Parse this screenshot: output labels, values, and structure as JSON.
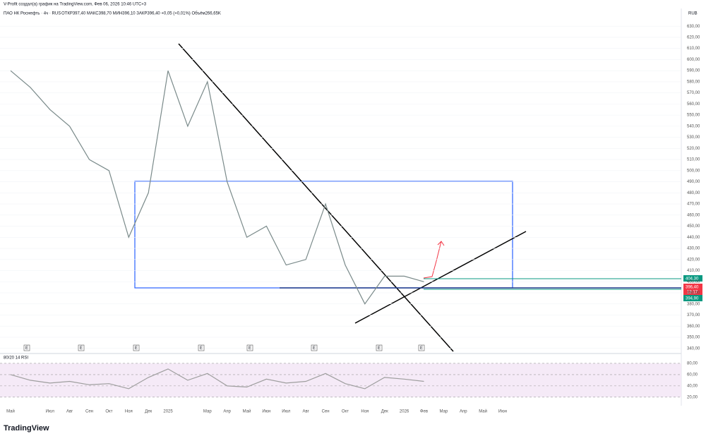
{
  "header": {
    "attribution": "V-Profit создал(а) график на TradingView.com, Фев 06, 2026 10:46 UTC+3"
  },
  "footer": {
    "logo": "TradingView"
  },
  "chart_data": [
    {
      "type": "line",
      "title": "ПАО НК Роснефть · 4ч · RUS",
      "ohlc_legend": "ОТКР397,40 МАКС398,70 МИН396,10 ЗАКР396,40 +0,05 (+0,01%) Объём266,65K",
      "ylabel": "RUB",
      "categories": [
        "Май",
        null,
        "Июл",
        "Авг",
        "Сен",
        "Окт",
        "Ноя",
        "Дек",
        "2025",
        null,
        "Мар",
        "Апр",
        "Май",
        "Июн",
        "Июл",
        "Авг",
        "Сен",
        "Окт",
        "Ноя",
        "Дек",
        "2026",
        "Фев",
        "Мар",
        "Апр",
        "Май",
        "Июн"
      ],
      "values": [
        590,
        575,
        555,
        540,
        510,
        500,
        440,
        480,
        590,
        540,
        580,
        490,
        440,
        450,
        415,
        420,
        470,
        415,
        380,
        405,
        405,
        400,
        null,
        null,
        null,
        null
      ],
      "color": "#7a8a8a",
      "ylim": [
        336,
        646
      ],
      "yticks": [
        {
          "value": 340,
          "label": "340,00"
        },
        {
          "value": 350,
          "label": "350,00"
        },
        {
          "value": 360,
          "label": "360,00"
        },
        {
          "value": 370,
          "label": "370,00"
        },
        {
          "value": 380,
          "label": "380,00"
        },
        {
          "value": 390,
          "label": "390,00"
        },
        {
          "value": 400,
          "label": "400,00"
        },
        {
          "value": 410,
          "label": "410,00"
        },
        {
          "value": 420,
          "label": "420,00"
        },
        {
          "value": 430,
          "label": "430,00"
        },
        {
          "value": 440,
          "label": "440,00"
        },
        {
          "value": 450,
          "label": "450,00"
        },
        {
          "value": 460,
          "label": "460,00"
        },
        {
          "value": 470,
          "label": "470,00"
        },
        {
          "value": 480,
          "label": "480,00"
        },
        {
          "value": 490,
          "label": "490,00"
        },
        {
          "value": 500,
          "label": "500,00"
        },
        {
          "value": 510,
          "label": "510,00"
        },
        {
          "value": 520,
          "label": "520,00"
        },
        {
          "value": 530,
          "label": "530,00"
        },
        {
          "value": 540,
          "label": "540,00"
        },
        {
          "value": 550,
          "label": "550,00"
        },
        {
          "value": 560,
          "label": "560,00"
        },
        {
          "value": 570,
          "label": "570,00"
        },
        {
          "value": 580,
          "label": "580,00"
        },
        {
          "value": 590,
          "label": "590,00"
        },
        {
          "value": 600,
          "label": "600,00"
        },
        {
          "value": 610,
          "label": "610,00"
        },
        {
          "value": 620,
          "label": "620,00"
        },
        {
          "value": 630,
          "label": "630,00"
        }
      ],
      "annotations": [
        "404,30",
        "396,40",
        "13:17",
        "394,90"
      ],
      "markers": [
        "E",
        "E",
        "E",
        "E",
        "E",
        "E",
        "E",
        "E"
      ],
      "grid": true
    },
    {
      "type": "line",
      "title": "80/20 14 RSI",
      "values": [
        60,
        50,
        45,
        48,
        42,
        44,
        35,
        55,
        70,
        50,
        62,
        40,
        38,
        52,
        45,
        48,
        62,
        44,
        35,
        55,
        52,
        48,
        null,
        null,
        null,
        null
      ],
      "color": "#9e9e9e",
      "ylim": [
        11,
        95
      ],
      "yticks": [
        {
          "value": 20,
          "label": "20,00"
        },
        {
          "value": 40,
          "label": "40,00"
        },
        {
          "value": 60,
          "label": "60,00"
        },
        {
          "value": 80,
          "label": "80,00"
        }
      ]
    }
  ]
}
